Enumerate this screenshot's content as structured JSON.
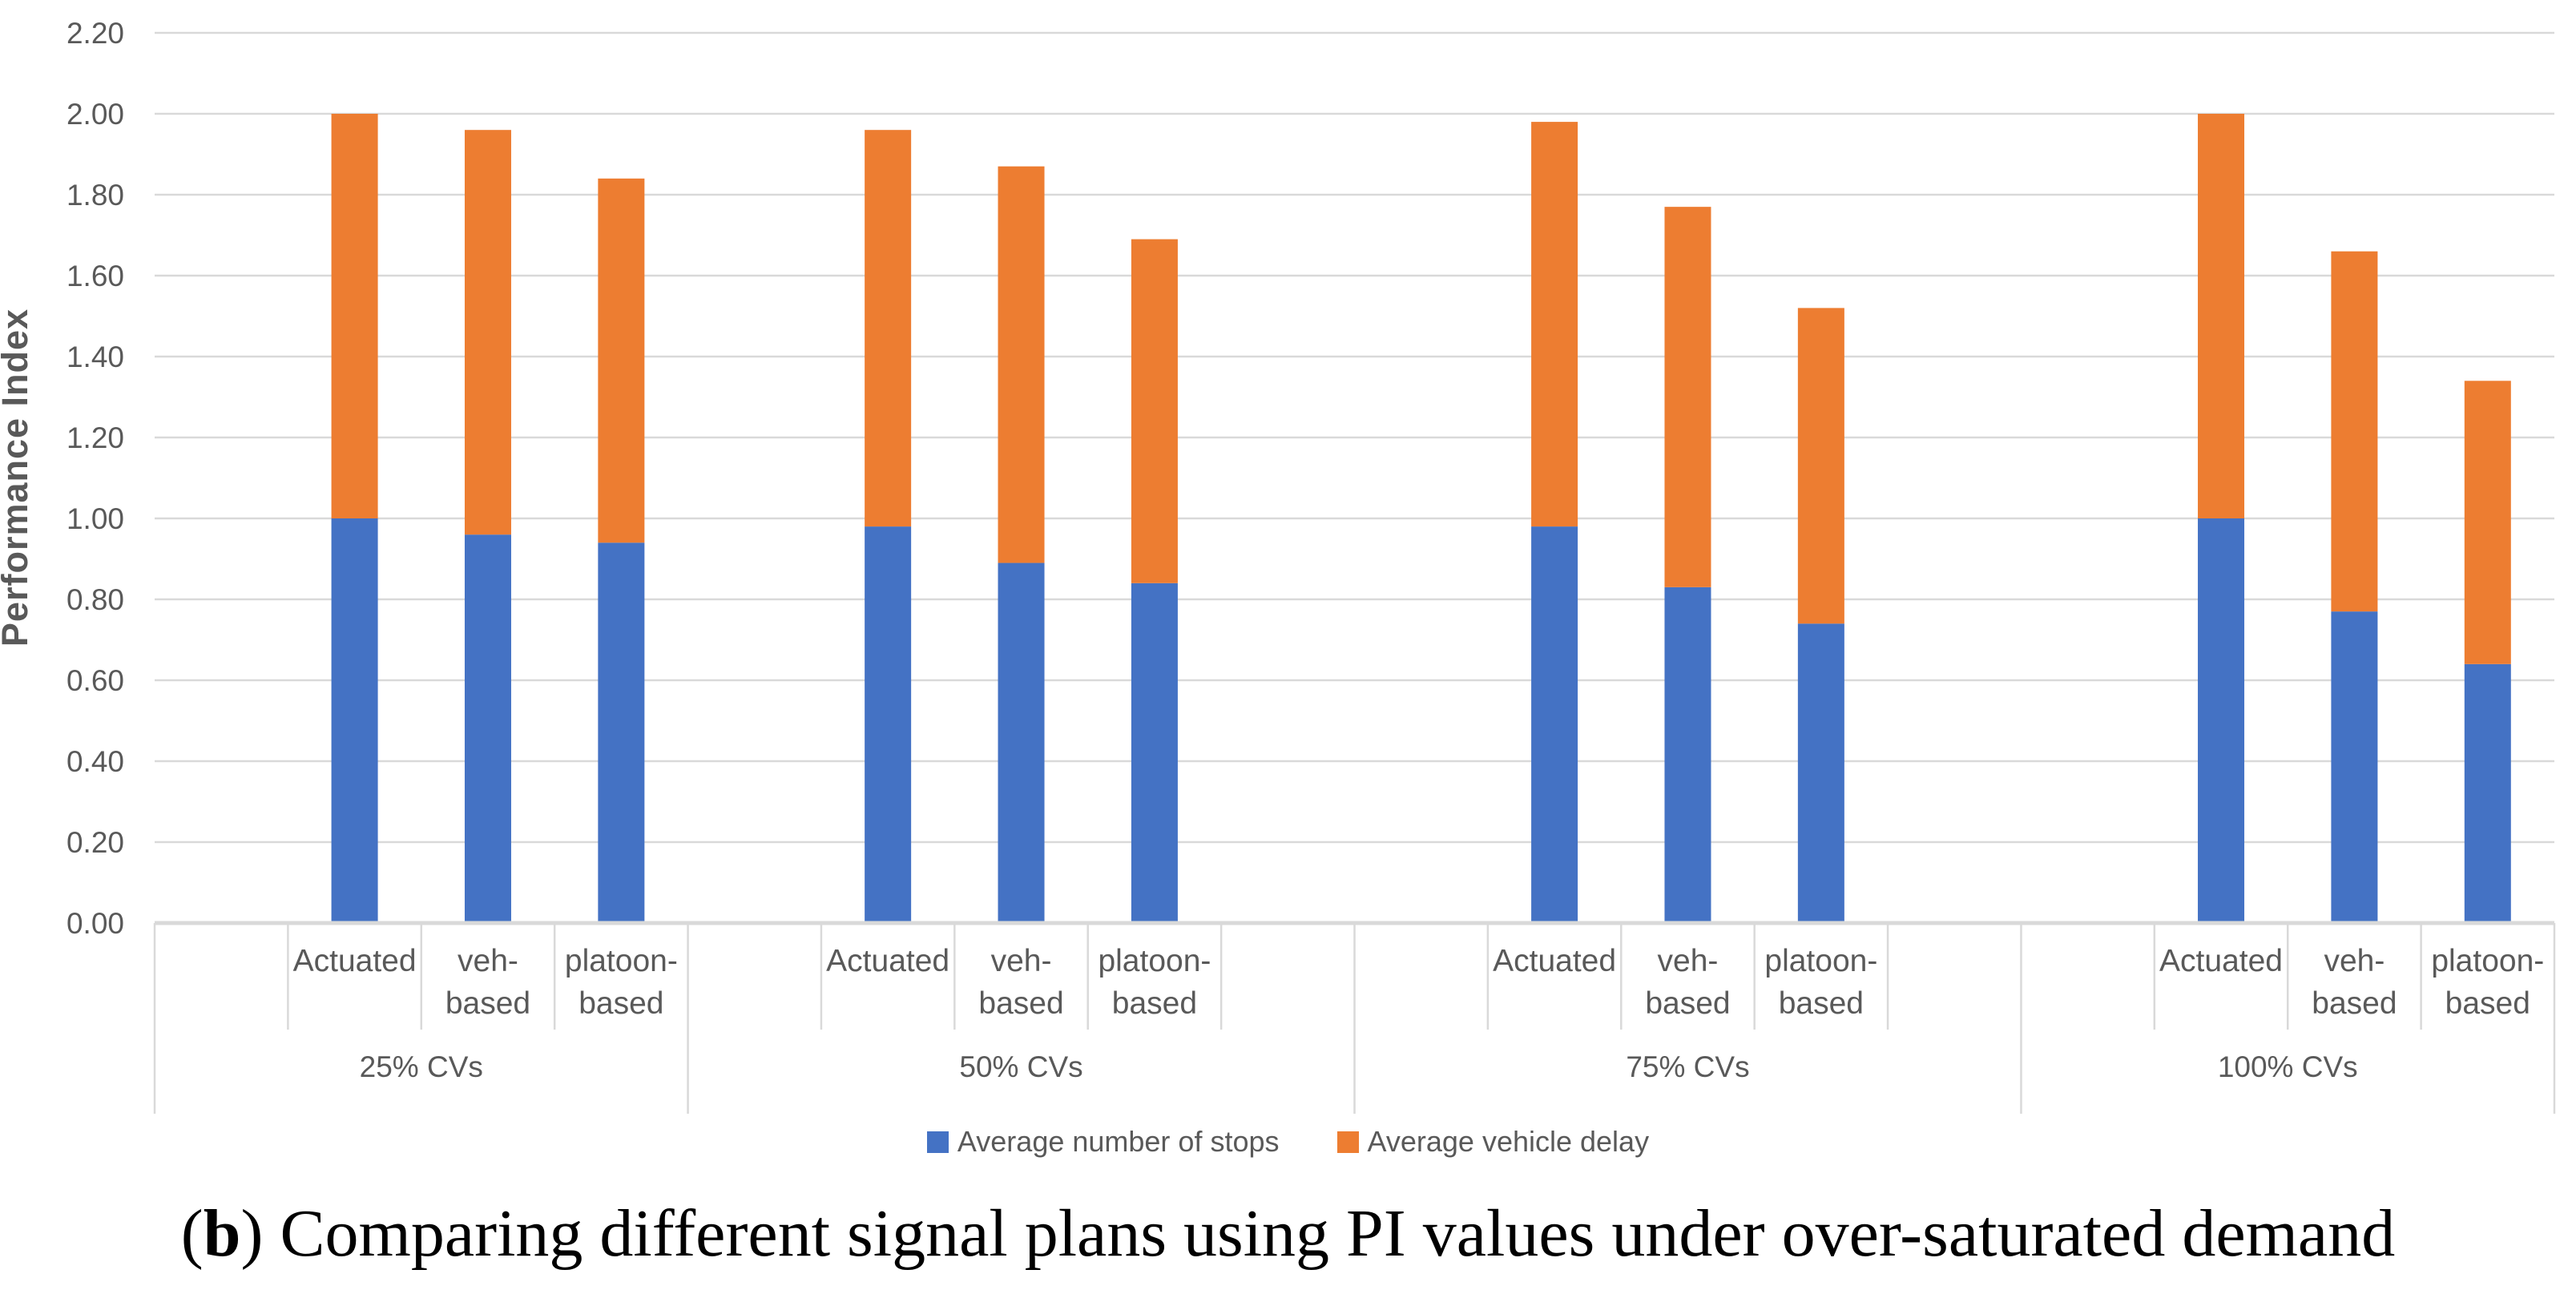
{
  "chart_data": {
    "type": "bar",
    "stacked": true,
    "title": "",
    "xlabel": "",
    "ylabel": "Performance Index",
    "ylim": [
      0,
      2.2
    ],
    "ytick_step": 0.2,
    "ytick_labels": [
      "0.00",
      "0.20",
      "0.40",
      "0.60",
      "0.80",
      "1.00",
      "1.20",
      "1.40",
      "1.60",
      "1.80",
      "2.00",
      "2.20"
    ],
    "grid": true,
    "legend_position": "bottom",
    "group_labels": [
      "25% CVs",
      "50% CVs",
      "75% CVs",
      "100% CVs"
    ],
    "category_labels": [
      {
        "lines": [
          "Actuated"
        ]
      },
      {
        "lines": [
          "veh-",
          "based"
        ]
      },
      {
        "lines": [
          "platoon-",
          "based"
        ]
      }
    ],
    "series": [
      {
        "name": "Average number of stops",
        "color": "#4472C4",
        "values": [
          [
            1.0,
            0.96,
            0.94
          ],
          [
            0.98,
            0.89,
            0.84
          ],
          [
            0.98,
            0.83,
            0.74
          ],
          [
            1.0,
            0.77,
            0.64
          ]
        ]
      },
      {
        "name": "Average vehicle delay",
        "color": "#ED7D31",
        "values": [
          [
            1.0,
            1.0,
            0.9
          ],
          [
            0.98,
            0.98,
            0.85
          ],
          [
            1.0,
            0.94,
            0.78
          ],
          [
            1.0,
            0.89,
            0.7
          ]
        ]
      }
    ],
    "stacked_totals": [
      [
        2.0,
        1.96,
        1.84
      ],
      [
        1.96,
        1.87,
        1.69
      ],
      [
        1.98,
        1.77,
        1.52
      ],
      [
        2.0,
        1.66,
        1.34
      ]
    ]
  },
  "caption": {
    "open": "(",
    "bold": "b",
    "close": ") ",
    "text": "Comparing different signal plans using PI values under over-saturated demand"
  },
  "colors": {
    "bar_blue": "#4472C4",
    "bar_orange": "#ED7D31",
    "gridline": "#D9D9D9",
    "axis_text": "#595959",
    "caption_text": "#000000"
  }
}
